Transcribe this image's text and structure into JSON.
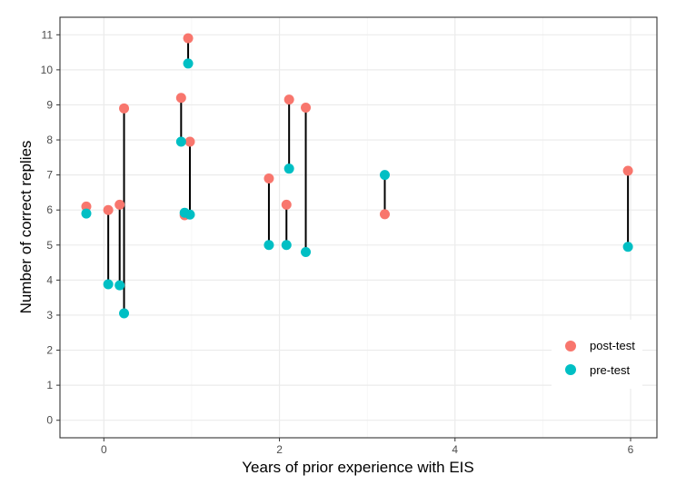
{
  "chart_data": {
    "type": "scatter",
    "xlabel": "Years of prior experience with EIS",
    "ylabel": "Number of correct replies",
    "xlim": [
      -0.5,
      6.3
    ],
    "ylim": [
      -0.5,
      11.5
    ],
    "x_ticks": [
      0,
      2,
      4,
      6
    ],
    "y_ticks": [
      0,
      1,
      2,
      3,
      4,
      5,
      6,
      7,
      8,
      9,
      10,
      11
    ],
    "x_tick_labels": [
      "0",
      "2",
      "4",
      "6"
    ],
    "y_tick_labels": [
      "0",
      "1",
      "2",
      "3",
      "4",
      "5",
      "6",
      "7",
      "8",
      "9",
      "10",
      "11"
    ],
    "grid": true,
    "legend_position": "bottom-right",
    "series": [
      {
        "name": "post-test",
        "color": "#F8766D",
        "points": [
          {
            "x": -0.2,
            "y": 6.1
          },
          {
            "x": 0.05,
            "y": 6.0
          },
          {
            "x": 0.18,
            "y": 6.15
          },
          {
            "x": 0.23,
            "y": 8.9
          },
          {
            "x": 0.88,
            "y": 9.2
          },
          {
            "x": 0.92,
            "y": 5.85
          },
          {
            "x": 0.96,
            "y": 10.9
          },
          {
            "x": 0.98,
            "y": 7.95
          },
          {
            "x": 1.88,
            "y": 6.9
          },
          {
            "x": 2.08,
            "y": 6.15
          },
          {
            "x": 2.11,
            "y": 9.15
          },
          {
            "x": 2.3,
            "y": 8.92
          },
          {
            "x": 3.2,
            "y": 5.88
          },
          {
            "x": 5.97,
            "y": 7.12
          }
        ]
      },
      {
        "name": "pre-test",
        "color": "#00BFC4",
        "points": [
          {
            "x": -0.2,
            "y": 5.9
          },
          {
            "x": 0.05,
            "y": 3.88
          },
          {
            "x": 0.18,
            "y": 3.85
          },
          {
            "x": 0.23,
            "y": 3.05
          },
          {
            "x": 0.88,
            "y": 7.95
          },
          {
            "x": 0.92,
            "y": 5.92
          },
          {
            "x": 0.96,
            "y": 10.18
          },
          {
            "x": 0.98,
            "y": 5.87
          },
          {
            "x": 1.88,
            "y": 5.0
          },
          {
            "x": 2.08,
            "y": 5.0
          },
          {
            "x": 2.11,
            "y": 7.18
          },
          {
            "x": 2.3,
            "y": 4.8
          },
          {
            "x": 3.2,
            "y": 7.0
          },
          {
            "x": 5.97,
            "y": 4.95
          }
        ]
      }
    ]
  }
}
